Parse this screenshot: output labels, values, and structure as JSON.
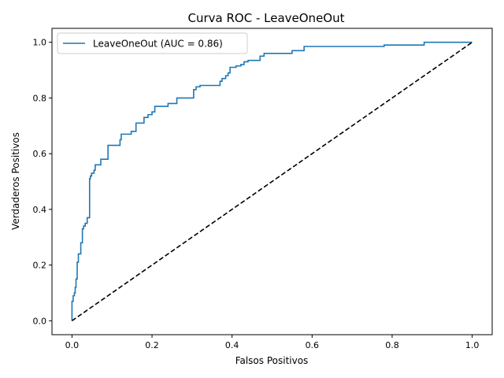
{
  "chart_data": {
    "type": "line",
    "title": "Curva ROC - LeaveOneOut",
    "xlabel": "Falsos Positivos",
    "ylabel": "Verdaderos Positivos",
    "xlim": [
      -0.05,
      1.05
    ],
    "ylim": [
      -0.05,
      1.05
    ],
    "xticks": [
      "0.0",
      "0.2",
      "0.4",
      "0.6",
      "0.8",
      "1.0"
    ],
    "yticks": [
      "0.0",
      "0.2",
      "0.4",
      "0.6",
      "0.8",
      "1.0"
    ],
    "grid": false,
    "legend_position": "top-left",
    "series": [
      {
        "name": "LeaveOneOut (AUC = 0.86)",
        "color": "#1f77b4",
        "style": "solid",
        "points": [
          [
            0.0,
            0.0
          ],
          [
            0.0,
            0.07
          ],
          [
            0.003,
            0.07
          ],
          [
            0.003,
            0.09
          ],
          [
            0.006,
            0.09
          ],
          [
            0.006,
            0.1
          ],
          [
            0.008,
            0.1
          ],
          [
            0.008,
            0.12
          ],
          [
            0.01,
            0.12
          ],
          [
            0.01,
            0.15
          ],
          [
            0.013,
            0.15
          ],
          [
            0.013,
            0.21
          ],
          [
            0.016,
            0.21
          ],
          [
            0.016,
            0.24
          ],
          [
            0.022,
            0.24
          ],
          [
            0.022,
            0.28
          ],
          [
            0.026,
            0.28
          ],
          [
            0.026,
            0.33
          ],
          [
            0.029,
            0.33
          ],
          [
            0.029,
            0.34
          ],
          [
            0.033,
            0.34
          ],
          [
            0.033,
            0.35
          ],
          [
            0.038,
            0.35
          ],
          [
            0.038,
            0.37
          ],
          [
            0.044,
            0.37
          ],
          [
            0.044,
            0.51
          ],
          [
            0.046,
            0.51
          ],
          [
            0.046,
            0.52
          ],
          [
            0.049,
            0.52
          ],
          [
            0.049,
            0.53
          ],
          [
            0.055,
            0.53
          ],
          [
            0.055,
            0.54
          ],
          [
            0.058,
            0.54
          ],
          [
            0.058,
            0.56
          ],
          [
            0.072,
            0.56
          ],
          [
            0.072,
            0.58
          ],
          [
            0.09,
            0.58
          ],
          [
            0.09,
            0.63
          ],
          [
            0.12,
            0.63
          ],
          [
            0.12,
            0.65
          ],
          [
            0.123,
            0.65
          ],
          [
            0.123,
            0.67
          ],
          [
            0.148,
            0.67
          ],
          [
            0.148,
            0.68
          ],
          [
            0.16,
            0.68
          ],
          [
            0.16,
            0.71
          ],
          [
            0.18,
            0.71
          ],
          [
            0.18,
            0.73
          ],
          [
            0.19,
            0.73
          ],
          [
            0.19,
            0.74
          ],
          [
            0.2,
            0.74
          ],
          [
            0.2,
            0.75
          ],
          [
            0.207,
            0.75
          ],
          [
            0.207,
            0.77
          ],
          [
            0.24,
            0.77
          ],
          [
            0.24,
            0.78
          ],
          [
            0.262,
            0.78
          ],
          [
            0.262,
            0.8
          ],
          [
            0.304,
            0.8
          ],
          [
            0.304,
            0.83
          ],
          [
            0.31,
            0.83
          ],
          [
            0.31,
            0.84
          ],
          [
            0.32,
            0.84
          ],
          [
            0.32,
            0.845
          ],
          [
            0.37,
            0.845
          ],
          [
            0.37,
            0.86
          ],
          [
            0.375,
            0.86
          ],
          [
            0.375,
            0.87
          ],
          [
            0.384,
            0.87
          ],
          [
            0.384,
            0.88
          ],
          [
            0.39,
            0.88
          ],
          [
            0.39,
            0.89
          ],
          [
            0.395,
            0.89
          ],
          [
            0.395,
            0.91
          ],
          [
            0.41,
            0.91
          ],
          [
            0.41,
            0.915
          ],
          [
            0.422,
            0.915
          ],
          [
            0.422,
            0.92
          ],
          [
            0.43,
            0.92
          ],
          [
            0.43,
            0.93
          ],
          [
            0.44,
            0.93
          ],
          [
            0.44,
            0.935
          ],
          [
            0.47,
            0.935
          ],
          [
            0.47,
            0.95
          ],
          [
            0.48,
            0.95
          ],
          [
            0.48,
            0.96
          ],
          [
            0.55,
            0.96
          ],
          [
            0.55,
            0.97
          ],
          [
            0.58,
            0.97
          ],
          [
            0.58,
            0.985
          ],
          [
            0.78,
            0.985
          ],
          [
            0.78,
            0.99
          ],
          [
            0.88,
            0.99
          ],
          [
            0.88,
            1.0
          ],
          [
            1.0,
            1.0
          ]
        ]
      },
      {
        "name": "",
        "color": "#000000",
        "style": "dashed",
        "points": [
          [
            0.0,
            0.0
          ],
          [
            1.0,
            1.0
          ]
        ]
      }
    ]
  }
}
